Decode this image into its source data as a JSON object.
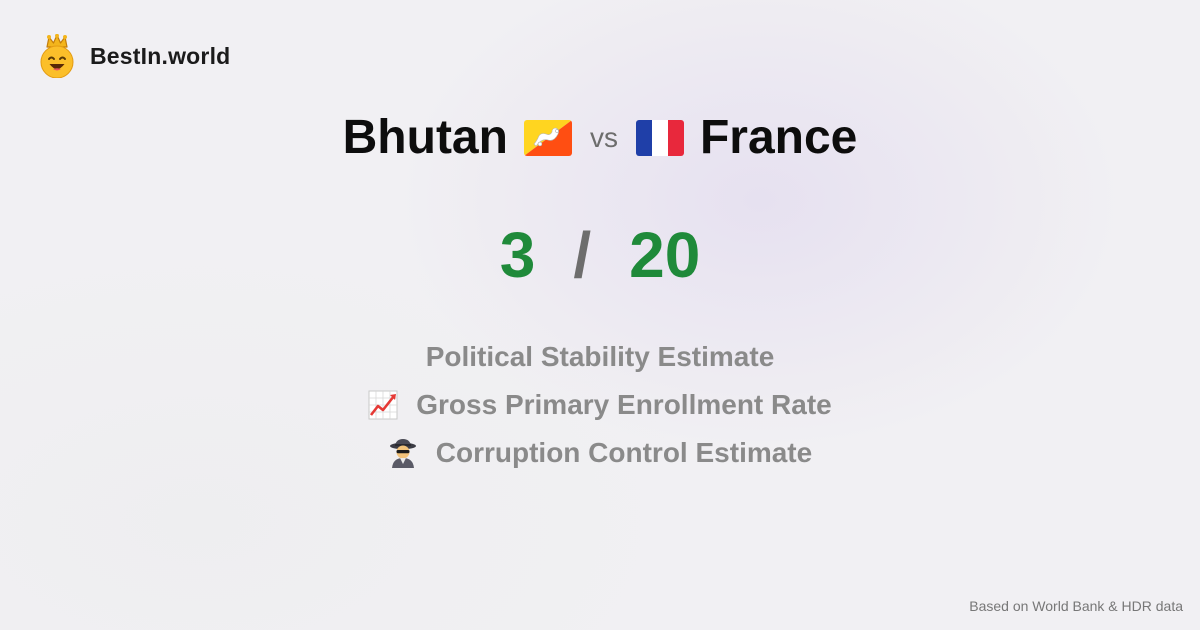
{
  "brand": {
    "name": "BestIn.world",
    "logo_icon": "crowned-smiley-icon"
  },
  "comparison": {
    "left_country": "Bhutan",
    "left_flag_icon": "bhutan-flag-icon",
    "vs_label": "vs",
    "right_country": "France",
    "right_flag_icon": "france-flag-icon"
  },
  "score": {
    "left": "3",
    "separator": "/",
    "right": "20",
    "color": "#1f8a3a"
  },
  "metrics": [
    {
      "label": "Political Stability Estimate",
      "icon": ""
    },
    {
      "label": "Gross Primary Enrollment Rate",
      "icon": "chart-increasing-icon"
    },
    {
      "label": "Corruption Control Estimate",
      "icon": "detective-icon"
    }
  ],
  "footer": {
    "source": "Based on World Bank & HDR data"
  }
}
